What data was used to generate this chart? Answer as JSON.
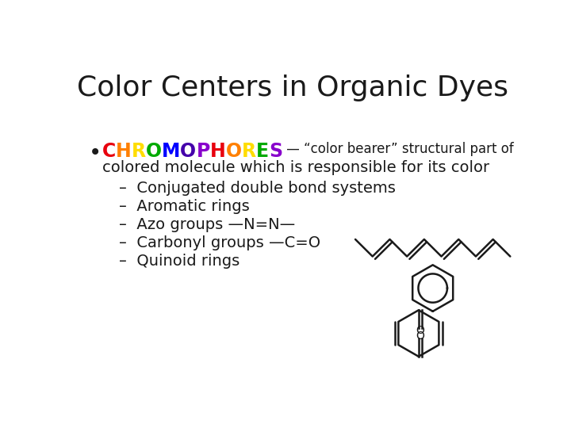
{
  "title": "Color Centers in Organic Dyes",
  "title_fontsize": 26,
  "bg_color": "#ffffff",
  "chromophores_letters": [
    "C",
    "H",
    "R",
    "O",
    "M",
    "O",
    "P",
    "H",
    "O",
    "R",
    "E",
    "S"
  ],
  "chromophores_colors": [
    "#e8000e",
    "#ff8000",
    "#ffdd00",
    "#00aa00",
    "#0000ff",
    "#4400aa",
    "#8800cc",
    "#e8000e",
    "#ff8000",
    "#ffdd00",
    "#00aa00",
    "#8800cc"
  ],
  "after_chromophores": " — “color bearer” structural part of",
  "line2": "colored molecule which is responsible for its color",
  "bullet_items": [
    "Conjugated double bond systems",
    "Aromatic rings",
    "Azo groups —N=N—",
    "Carbonyl groups —C=O",
    "Quinoid rings"
  ],
  "text_color": "#1a1a1a",
  "body_fontsize": 14,
  "chrom_fontsize": 17,
  "bullet_symbol": "–"
}
